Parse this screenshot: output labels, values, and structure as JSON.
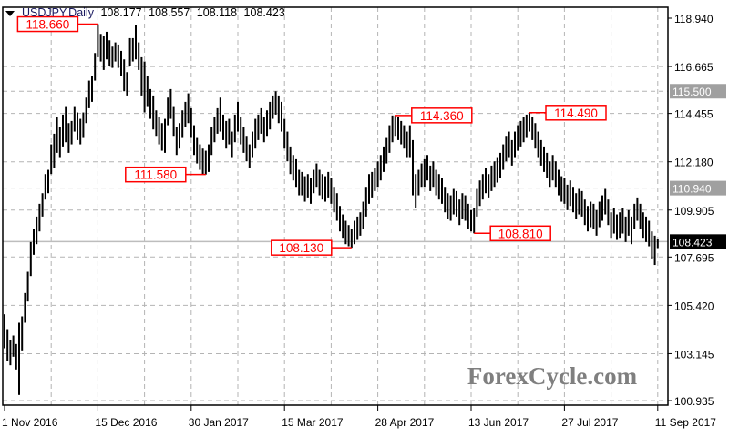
{
  "header": {
    "symbol": "USDJPY,Daily",
    "open": "108.177",
    "high": "108.557",
    "low": "108.118",
    "close": "108.423"
  },
  "watermark": "ForexCycle.com",
  "colors": {
    "bars": "#000000",
    "grid": "#b4b4b4",
    "annotation": "#ff0000",
    "current_price_bg": "#000000",
    "level_bg": "#a0a0a0"
  },
  "chart_data": {
    "type": "ohlc-bar",
    "title": "USDJPY,Daily",
    "ylim": [
      100.935,
      118.94
    ],
    "y_ticks": [
      "118.940",
      "116.665",
      "114.455",
      "112.180",
      "109.905",
      "107.695",
      "105.420",
      "103.145",
      "100.935"
    ],
    "x_ticks": [
      "1 Nov 2016",
      "15 Dec 2016",
      "30 Jan 2017",
      "15 Mar 2017",
      "28 Apr 2017",
      "13 Jun 2017",
      "27 Jul 2017",
      "11 Sep 2017"
    ],
    "grid": true,
    "current_price": "108.423",
    "levels": [
      "115.500",
      "110.940"
    ],
    "annotations": [
      {
        "label": "118.660",
        "bar": 32,
        "side": "left"
      },
      {
        "label": "111.580",
        "bar": 69,
        "side": "left"
      },
      {
        "label": "108.130",
        "bar": 119,
        "side": "left"
      },
      {
        "label": "114.360",
        "bar": 134,
        "side": "right"
      },
      {
        "label": "108.810",
        "bar": 161,
        "side": "right"
      },
      {
        "label": "114.490",
        "bar": 180,
        "side": "right"
      }
    ],
    "bars_high_low": [
      [
        105.0,
        103.4
      ],
      [
        104.3,
        102.8
      ],
      [
        103.8,
        102.6
      ],
      [
        104.0,
        103.0
      ],
      [
        103.6,
        102.4
      ],
      [
        104.6,
        101.2
      ],
      [
        104.9,
        103.3
      ],
      [
        106.0,
        104.6
      ],
      [
        107.0,
        105.6
      ],
      [
        108.4,
        106.8
      ],
      [
        109.0,
        107.8
      ],
      [
        109.6,
        108.3
      ],
      [
        110.2,
        108.9
      ],
      [
        110.7,
        109.6
      ],
      [
        111.6,
        110.4
      ],
      [
        111.8,
        110.7
      ],
      [
        113.0,
        111.6
      ],
      [
        113.5,
        111.9
      ],
      [
        114.3,
        112.6
      ],
      [
        113.8,
        112.4
      ],
      [
        114.4,
        112.9
      ],
      [
        114.8,
        113.1
      ],
      [
        114.0,
        112.6
      ],
      [
        114.1,
        113.0
      ],
      [
        114.8,
        113.6
      ],
      [
        114.5,
        113.2
      ],
      [
        114.2,
        113.0
      ],
      [
        114.5,
        113.3
      ],
      [
        115.2,
        114.0
      ],
      [
        116.0,
        114.7
      ],
      [
        116.2,
        115.0
      ],
      [
        117.3,
        116.0
      ],
      [
        118.66,
        117.1
      ],
      [
        118.2,
        116.9
      ],
      [
        118.1,
        116.5
      ],
      [
        118.3,
        117.0
      ],
      [
        117.9,
        116.7
      ],
      [
        117.6,
        116.6
      ],
      [
        117.8,
        116.9
      ],
      [
        117.7,
        116.6
      ],
      [
        117.4,
        116.2
      ],
      [
        117.0,
        115.5
      ],
      [
        116.4,
        115.3
      ],
      [
        118.0,
        116.7
      ],
      [
        118.0,
        116.9
      ],
      [
        118.6,
        117.0
      ],
      [
        117.8,
        116.5
      ],
      [
        117.1,
        115.3
      ],
      [
        116.9,
        114.5
      ],
      [
        116.2,
        114.8
      ],
      [
        115.6,
        114.2
      ],
      [
        115.3,
        113.7
      ],
      [
        114.6,
        113.4
      ],
      [
        114.3,
        113.0
      ],
      [
        114.0,
        112.7
      ],
      [
        114.2,
        112.6
      ],
      [
        115.2,
        113.9
      ],
      [
        115.6,
        114.2
      ],
      [
        114.8,
        113.4
      ],
      [
        113.8,
        112.5
      ],
      [
        114.0,
        112.8
      ],
      [
        114.6,
        113.3
      ],
      [
        115.0,
        113.8
      ],
      [
        115.4,
        114.0
      ],
      [
        114.7,
        113.3
      ],
      [
        113.9,
        112.5
      ],
      [
        113.3,
        112.1
      ],
      [
        113.0,
        111.8
      ],
      [
        112.8,
        111.6
      ],
      [
        112.7,
        111.58
      ],
      [
        113.0,
        111.7
      ],
      [
        113.8,
        112.5
      ],
      [
        114.3,
        113.1
      ],
      [
        114.7,
        113.5
      ],
      [
        115.2,
        113.6
      ],
      [
        114.4,
        113.2
      ],
      [
        114.1,
        112.8
      ],
      [
        114.2,
        113.0
      ],
      [
        113.6,
        112.4
      ],
      [
        114.4,
        113.1
      ],
      [
        115.0,
        113.6
      ],
      [
        114.3,
        113.0
      ],
      [
        113.8,
        112.6
      ],
      [
        113.4,
        112.2
      ],
      [
        113.0,
        111.9
      ],
      [
        113.6,
        112.4
      ],
      [
        114.2,
        112.8
      ],
      [
        114.4,
        113.2
      ],
      [
        114.7,
        113.5
      ],
      [
        114.3,
        113.1
      ],
      [
        114.6,
        113.4
      ],
      [
        115.0,
        113.7
      ],
      [
        115.3,
        114.2
      ],
      [
        115.5,
        114.4
      ],
      [
        115.3,
        114.0
      ],
      [
        115.0,
        113.6
      ],
      [
        114.2,
        112.8
      ],
      [
        113.6,
        112.2
      ],
      [
        112.9,
        111.6
      ],
      [
        112.5,
        111.3
      ],
      [
        112.3,
        111.0
      ],
      [
        111.8,
        110.6
      ],
      [
        111.7,
        110.6
      ],
      [
        111.5,
        110.3
      ],
      [
        111.6,
        110.5
      ],
      [
        111.4,
        110.2
      ],
      [
        111.8,
        110.7
      ],
      [
        112.1,
        111.0
      ],
      [
        111.8,
        110.6
      ],
      [
        111.6,
        110.4
      ],
      [
        111.5,
        110.3
      ],
      [
        111.7,
        110.5
      ],
      [
        111.4,
        110.2
      ],
      [
        111.0,
        109.8
      ],
      [
        110.7,
        109.4
      ],
      [
        110.1,
        108.9
      ],
      [
        109.7,
        108.6
      ],
      [
        109.4,
        108.3
      ],
      [
        109.2,
        108.2
      ],
      [
        109.0,
        108.13
      ],
      [
        109.4,
        108.3
      ],
      [
        109.6,
        108.5
      ],
      [
        109.8,
        108.7
      ],
      [
        110.3,
        109.0
      ],
      [
        111.0,
        109.6
      ],
      [
        111.6,
        110.2
      ],
      [
        111.7,
        110.5
      ],
      [
        111.9,
        110.8
      ],
      [
        112.2,
        111.0
      ],
      [
        112.5,
        111.3
      ],
      [
        112.9,
        111.7
      ],
      [
        113.3,
        112.1
      ],
      [
        113.9,
        112.6
      ],
      [
        114.36,
        113.1
      ],
      [
        114.36,
        113.4
      ],
      [
        114.3,
        113.2
      ],
      [
        114.1,
        113.0
      ],
      [
        113.9,
        112.8
      ],
      [
        113.6,
        112.4
      ],
      [
        113.9,
        112.4
      ],
      [
        113.2,
        110.6
      ],
      [
        111.6,
        110.0
      ],
      [
        111.8,
        110.6
      ],
      [
        112.1,
        111.0
      ],
      [
        112.3,
        111.0
      ],
      [
        112.5,
        111.3
      ],
      [
        112.0,
        110.8
      ],
      [
        112.2,
        111.0
      ],
      [
        111.8,
        110.6
      ],
      [
        111.6,
        110.4
      ],
      [
        111.4,
        110.2
      ],
      [
        111.0,
        109.8
      ],
      [
        110.7,
        109.5
      ],
      [
        110.6,
        109.4
      ],
      [
        110.9,
        109.7
      ],
      [
        110.8,
        109.6
      ],
      [
        110.4,
        109.2
      ],
      [
        110.7,
        109.5
      ],
      [
        110.6,
        109.4
      ],
      [
        110.2,
        109.0
      ],
      [
        109.9,
        108.9
      ],
      [
        110.0,
        108.81
      ],
      [
        110.9,
        109.6
      ],
      [
        111.3,
        110.1
      ],
      [
        111.6,
        110.4
      ],
      [
        111.9,
        110.7
      ],
      [
        111.6,
        110.5
      ],
      [
        112.0,
        110.8
      ],
      [
        112.2,
        111.0
      ],
      [
        112.4,
        111.2
      ],
      [
        112.6,
        111.4
      ],
      [
        113.0,
        111.8
      ],
      [
        113.4,
        112.2
      ],
      [
        113.6,
        112.4
      ],
      [
        113.2,
        112.0
      ],
      [
        113.6,
        112.4
      ],
      [
        113.9,
        112.7
      ],
      [
        114.1,
        112.9
      ],
      [
        114.3,
        113.1
      ],
      [
        114.4,
        113.3
      ],
      [
        114.49,
        113.6
      ],
      [
        114.3,
        113.2
      ],
      [
        114.0,
        112.8
      ],
      [
        113.6,
        112.4
      ],
      [
        113.2,
        112.0
      ],
      [
        112.9,
        111.7
      ],
      [
        112.6,
        111.4
      ],
      [
        112.2,
        111.0
      ],
      [
        112.5,
        111.3
      ],
      [
        112.2,
        111.0
      ],
      [
        111.8,
        110.6
      ],
      [
        111.5,
        110.3
      ],
      [
        111.4,
        110.2
      ],
      [
        111.1,
        109.9
      ],
      [
        111.3,
        110.1
      ],
      [
        111.0,
        109.8
      ],
      [
        110.7,
        109.5
      ],
      [
        110.9,
        109.7
      ],
      [
        110.8,
        109.6
      ],
      [
        110.4,
        109.2
      ],
      [
        110.1,
        108.9
      ],
      [
        110.3,
        109.1
      ],
      [
        110.2,
        109.0
      ],
      [
        109.9,
        108.7
      ],
      [
        110.3,
        109.1
      ],
      [
        110.6,
        109.4
      ],
      [
        110.9,
        109.7
      ],
      [
        110.4,
        109.2
      ],
      [
        109.8,
        108.6
      ],
      [
        110.0,
        108.8
      ],
      [
        109.7,
        108.5
      ],
      [
        109.8,
        108.6
      ],
      [
        110.0,
        108.8
      ],
      [
        109.6,
        108.4
      ],
      [
        109.9,
        108.7
      ],
      [
        109.6,
        108.3
      ],
      [
        110.2,
        109.0
      ],
      [
        110.5,
        109.4
      ],
      [
        110.2,
        109.0
      ],
      [
        109.8,
        108.6
      ],
      [
        109.6,
        108.4
      ],
      [
        109.4,
        108.2
      ],
      [
        108.9,
        107.6
      ],
      [
        108.7,
        107.32
      ],
      [
        108.557,
        108.118
      ]
    ]
  }
}
